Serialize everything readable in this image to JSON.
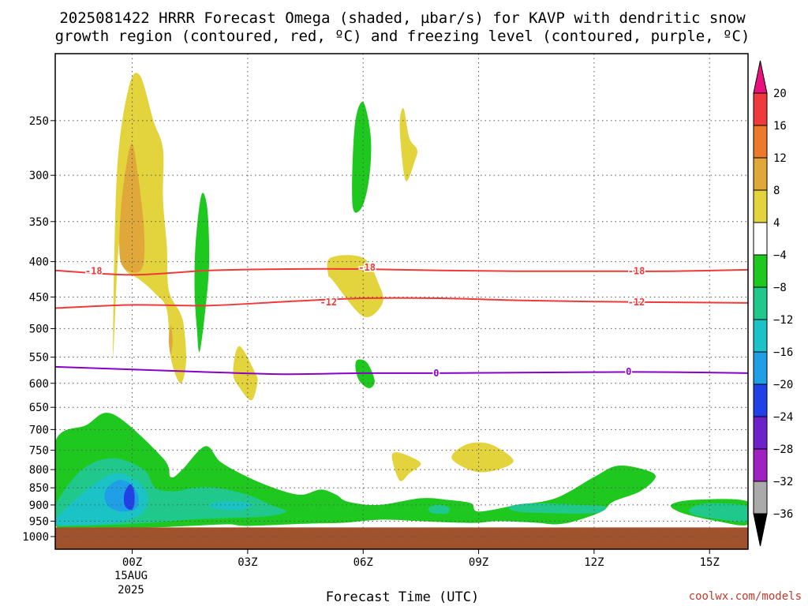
{
  "chart_data": {
    "type": "heatmap",
    "title_lines": [
      "2025081422 HRRR Forecast Omega (shaded, µbar/s) for KAVP with dendritic snow",
      "growth region (contoured, red, ºC) and freezing level (contoured, purple, ºC)"
    ],
    "xlabel": "Forecast Time (UTC)",
    "x_ticks": [
      {
        "label": "00Z",
        "hour": 0
      },
      {
        "label": "03Z",
        "hour": 3
      },
      {
        "label": "06Z",
        "hour": 6
      },
      {
        "label": "09Z",
        "hour": 9
      },
      {
        "label": "12Z",
        "hour": 12
      },
      {
        "label": "15Z",
        "hour": 15
      }
    ],
    "x_date_lines": [
      "15AUG",
      "2025"
    ],
    "x_range_hours": [
      -2,
      16
    ],
    "y_unit": "hPa",
    "y_ticks": [
      250,
      300,
      350,
      400,
      450,
      500,
      550,
      600,
      650,
      700,
      750,
      800,
      850,
      900,
      950,
      1000
    ],
    "y_range": [
      200,
      1000
    ],
    "y_log": true,
    "grid": "dotted",
    "colorbar": {
      "labels": [
        "20",
        "16",
        "12",
        "8",
        "4",
        "−4",
        "−8",
        "−12",
        "−16",
        "−20",
        "−24",
        "−28",
        "−32",
        "−36"
      ],
      "bins": [
        {
          "from": 16,
          "to": 20,
          "color": "#ee3a3a"
        },
        {
          "from": 12,
          "to": 16,
          "color": "#ec7a2a"
        },
        {
          "from": 8,
          "to": 12,
          "color": "#e0a83a"
        },
        {
          "from": 4,
          "to": 8,
          "color": "#e3d33c"
        },
        {
          "from": -4,
          "to": 4,
          "color": "#ffffff"
        },
        {
          "from": -8,
          "to": -4,
          "color": "#1fc81f"
        },
        {
          "from": -12,
          "to": -8,
          "color": "#20c88c"
        },
        {
          "from": -16,
          "to": -12,
          "color": "#1bc3c7"
        },
        {
          "from": -20,
          "to": -16,
          "color": "#1e9fe6"
        },
        {
          "from": -24,
          "to": -20,
          "color": "#2040e8"
        },
        {
          "from": -28,
          "to": -24,
          "color": "#6b22c8"
        },
        {
          "from": -32,
          "to": -28,
          "color": "#a021c2"
        },
        {
          "from": -36,
          "to": -32,
          "color": "#aaaaaa"
        }
      ],
      "top_arrow_color": "#e8117d",
      "bottom_arrow_color": "#000000"
    },
    "omega_regions": [
      {
        "color": "#e3d33c",
        "points": [
          [
            -0.5,
            550
          ],
          [
            -0.4,
            300
          ],
          [
            -0.1,
            225
          ],
          [
            0.2,
            215
          ],
          [
            0.55,
            250
          ],
          [
            0.8,
            275
          ],
          [
            0.8,
            325
          ],
          [
            0.9,
            380
          ],
          [
            0.95,
            440
          ],
          [
            1.25,
            475
          ],
          [
            1.35,
            500
          ],
          [
            1.4,
            560
          ],
          [
            1.25,
            600
          ],
          [
            1.0,
            550
          ],
          [
            0.9,
            470
          ],
          [
            0.6,
            445
          ],
          [
            0.2,
            425
          ],
          [
            -0.2,
            410
          ],
          [
            -0.35,
            380
          ]
        ]
      },
      {
        "color": "#e0a83a",
        "points": [
          [
            -0.3,
            400
          ],
          [
            -0.3,
            340
          ],
          [
            -0.15,
            290
          ],
          [
            0.0,
            270
          ],
          [
            0.15,
            300
          ],
          [
            0.3,
            355
          ],
          [
            0.3,
            400
          ],
          [
            0.1,
            415
          ]
        ]
      },
      {
        "color": "#e0a83a",
        "points": [
          [
            0.95,
            520
          ],
          [
            1.0,
            495
          ],
          [
            1.05,
            520
          ],
          [
            1.0,
            545
          ]
        ]
      },
      {
        "color": "#1fc81f",
        "points": [
          [
            1.62,
            440
          ],
          [
            1.65,
            375
          ],
          [
            1.8,
            320
          ],
          [
            1.95,
            335
          ],
          [
            2.0,
            400
          ],
          [
            1.9,
            470
          ],
          [
            1.75,
            540
          ],
          [
            1.68,
            500
          ]
        ]
      },
      {
        "color": "#e3d33c",
        "points": [
          [
            2.62,
            580
          ],
          [
            2.78,
            530
          ],
          [
            3.2,
            580
          ],
          [
            3.25,
            600
          ],
          [
            3.1,
            635
          ],
          [
            2.8,
            610
          ]
        ]
      },
      {
        "color": "#1fc81f",
        "points": [
          [
            5.72,
            330
          ],
          [
            5.78,
            255
          ],
          [
            6.0,
            235
          ],
          [
            6.2,
            265
          ],
          [
            6.15,
            305
          ],
          [
            5.95,
            335
          ]
        ]
      },
      {
        "color": "#e3d33c",
        "points": [
          [
            6.95,
            255
          ],
          [
            7.05,
            240
          ],
          [
            7.2,
            265
          ],
          [
            7.4,
            275
          ],
          [
            7.35,
            285
          ],
          [
            7.1,
            305
          ]
        ]
      },
      {
        "color": "#e3d33c",
        "points": [
          [
            5.1,
            420
          ],
          [
            5.15,
            395
          ],
          [
            6.0,
            395
          ],
          [
            6.4,
            430
          ],
          [
            6.5,
            460
          ],
          [
            6.0,
            480
          ],
          [
            5.2,
            425
          ]
        ]
      },
      {
        "color": "#1fc81f",
        "points": [
          [
            5.8,
            570
          ],
          [
            5.85,
            555
          ],
          [
            6.1,
            560
          ],
          [
            6.3,
            595
          ],
          [
            6.15,
            610
          ],
          [
            5.9,
            595
          ]
        ]
      },
      {
        "color": "#e3d33c",
        "points": [
          [
            6.75,
            770
          ],
          [
            6.85,
            755
          ],
          [
            7.2,
            765
          ],
          [
            7.5,
            785
          ],
          [
            7.2,
            810
          ],
          [
            6.95,
            830
          ]
        ]
      },
      {
        "color": "#e3d33c",
        "points": [
          [
            8.3,
            770
          ],
          [
            8.7,
            735
          ],
          [
            9.3,
            735
          ],
          [
            9.9,
            775
          ],
          [
            9.5,
            800
          ],
          [
            8.9,
            805
          ]
        ]
      },
      {
        "color": "#1fc81f",
        "points": [
          [
            -2,
            960
          ],
          [
            -2,
            730
          ],
          [
            -1.2,
            690
          ],
          [
            -0.5,
            665
          ],
          [
            0.8,
            770
          ],
          [
            1.0,
            820
          ],
          [
            1.3,
            800
          ],
          [
            1.9,
            740
          ],
          [
            2.3,
            780
          ],
          [
            3.0,
            820
          ],
          [
            3.8,
            855
          ],
          [
            4.4,
            870
          ],
          [
            4.9,
            855
          ],
          [
            5.3,
            870
          ],
          [
            5.6,
            890
          ],
          [
            6.4,
            900
          ],
          [
            7.5,
            880
          ],
          [
            8.2,
            885
          ],
          [
            8.8,
            895
          ],
          [
            9.0,
            920
          ],
          [
            10.0,
            900
          ],
          [
            11.0,
            880
          ],
          [
            12.0,
            820
          ],
          [
            12.6,
            790
          ],
          [
            13.3,
            800
          ],
          [
            13.6,
            820
          ],
          [
            13.2,
            860
          ],
          [
            12.5,
            890
          ],
          [
            12.2,
            920
          ],
          [
            11.5,
            950
          ],
          [
            11,
            960
          ],
          [
            10.5,
            955
          ],
          [
            9.5,
            950
          ],
          [
            9,
            955
          ],
          [
            8.5,
            955
          ],
          [
            7.5,
            950
          ],
          [
            6.5,
            945
          ],
          [
            5.5,
            955
          ],
          [
            4.5,
            958
          ],
          [
            3,
            965
          ],
          [
            2.5,
            960
          ],
          [
            1.5,
            965
          ],
          [
            0.5,
            970
          ],
          [
            -1,
            970
          ]
        ]
      },
      {
        "color": "#20c88c",
        "points": [
          [
            -2,
            960
          ],
          [
            -2,
            900
          ],
          [
            -1.3,
            800
          ],
          [
            -0.5,
            770
          ],
          [
            0.3,
            800
          ],
          [
            0.6,
            850
          ],
          [
            1.1,
            860
          ],
          [
            1.6,
            850
          ],
          [
            2.2,
            850
          ],
          [
            3.0,
            870
          ],
          [
            3.6,
            900
          ],
          [
            4.0,
            920
          ],
          [
            3.5,
            935
          ],
          [
            2.5,
            940
          ],
          [
            1.5,
            945
          ],
          [
            0.5,
            955
          ],
          [
            -0.5,
            962
          ],
          [
            -1.5,
            965
          ]
        ]
      },
      {
        "color": "#1bc3c7",
        "points": [
          [
            -2,
            960
          ],
          [
            -1.8,
            920
          ],
          [
            -1.0,
            840
          ],
          [
            -0.4,
            810
          ],
          [
            0.1,
            830
          ],
          [
            0.4,
            870
          ],
          [
            0.3,
            920
          ],
          [
            -0.2,
            950
          ],
          [
            -1,
            960
          ]
        ]
      },
      {
        "color": "#1e9fe6",
        "points": [
          [
            -0.7,
            860
          ],
          [
            -0.4,
            830
          ],
          [
            -0.1,
            835
          ],
          [
            0.15,
            870
          ],
          [
            0.1,
            910
          ],
          [
            -0.3,
            920
          ],
          [
            -0.65,
            900
          ]
        ]
      },
      {
        "color": "#2040e8",
        "points": [
          [
            -0.2,
            865
          ],
          [
            -0.05,
            840
          ],
          [
            0.05,
            860
          ],
          [
            0.05,
            900
          ],
          [
            -0.05,
            915
          ],
          [
            -0.2,
            900
          ]
        ]
      },
      {
        "color": "#20c88c",
        "points": [
          [
            1.9,
            900
          ],
          [
            2.2,
            880
          ],
          [
            3.0,
            885
          ],
          [
            3.3,
            900
          ],
          [
            3.0,
            920
          ],
          [
            2.2,
            920
          ]
        ]
      },
      {
        "color": "#1bc3c7",
        "points": [
          [
            2.0,
            900
          ],
          [
            2.3,
            890
          ],
          [
            2.9,
            892
          ],
          [
            3.1,
            902
          ],
          [
            2.8,
            915
          ],
          [
            2.2,
            912
          ]
        ]
      },
      {
        "color": "#20c88c",
        "points": [
          [
            9.8,
            905
          ],
          [
            10.4,
            895
          ],
          [
            11.6,
            900
          ],
          [
            12.3,
            905
          ],
          [
            12.0,
            925
          ],
          [
            10.8,
            925
          ],
          [
            10.0,
            920
          ]
        ]
      },
      {
        "color": "#1fc81f",
        "points": [
          [
            14.0,
            900
          ],
          [
            14.6,
            885
          ],
          [
            16,
            890
          ],
          [
            16,
            960
          ],
          [
            15.2,
            950
          ],
          [
            14.3,
            925
          ]
        ]
      },
      {
        "color": "#20c88c",
        "points": [
          [
            14.5,
            910
          ],
          [
            15.0,
            895
          ],
          [
            16,
            905
          ],
          [
            16,
            950
          ],
          [
            15.3,
            945
          ],
          [
            14.6,
            930
          ]
        ]
      },
      {
        "color": "#20c88c",
        "points": [
          [
            7.7,
            910
          ],
          [
            7.9,
            900
          ],
          [
            8.2,
            905
          ],
          [
            8.2,
            925
          ],
          [
            7.8,
            925
          ]
        ]
      }
    ],
    "ground_color": "#a0522d",
    "ground_from": 970,
    "contours": [
      {
        "series": "dendritic snow growth",
        "value": -18,
        "label": "-18",
        "color": "#ee3a3a",
        "points": [
          [
            -2,
            412
          ],
          [
            0,
            418
          ],
          [
            2,
            412
          ],
          [
            4,
            410
          ],
          [
            6,
            410
          ],
          [
            8,
            412
          ],
          [
            10,
            413
          ],
          [
            12,
            413
          ],
          [
            14,
            413
          ],
          [
            16,
            411
          ]
        ],
        "label_at": [
          [
            -1.0,
            413
          ],
          [
            6.1,
            408
          ],
          [
            13.1,
            413
          ]
        ]
      },
      {
        "series": "dendritic snow growth",
        "value": -12,
        "label": "-12",
        "color": "#ee3a3a",
        "points": [
          [
            -2,
            467
          ],
          [
            0,
            462
          ],
          [
            2,
            463
          ],
          [
            4,
            457
          ],
          [
            6,
            452
          ],
          [
            8,
            452
          ],
          [
            10,
            455
          ],
          [
            12,
            457
          ],
          [
            14,
            458
          ],
          [
            16,
            459
          ]
        ],
        "label_at": [
          [
            5.1,
            458
          ],
          [
            13.1,
            458
          ]
        ]
      },
      {
        "series": "freezing level",
        "value": 0,
        "label": "0",
        "color": "#8a00c8",
        "points": [
          [
            -2,
            568
          ],
          [
            0,
            573
          ],
          [
            2,
            578
          ],
          [
            4,
            582
          ],
          [
            6,
            580
          ],
          [
            8,
            580
          ],
          [
            10,
            579
          ],
          [
            12,
            578
          ],
          [
            14,
            578
          ],
          [
            16,
            580
          ]
        ],
        "label_at": [
          [
            7.9,
            580
          ],
          [
            12.9,
            577
          ]
        ]
      }
    ]
  },
  "credit": "coolwx.com/models"
}
